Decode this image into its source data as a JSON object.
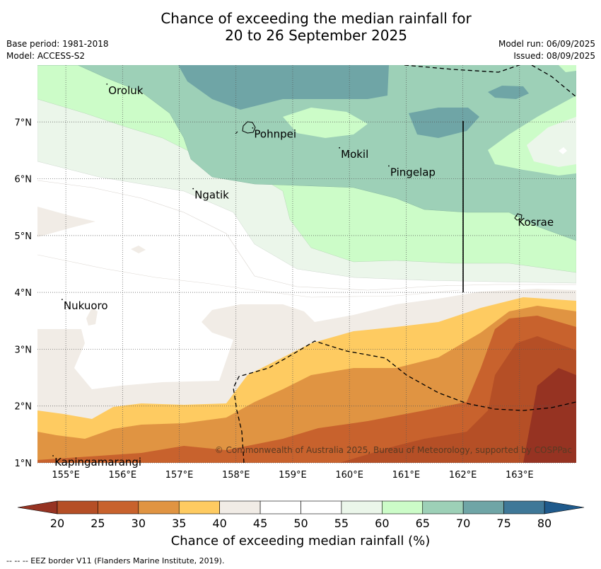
{
  "title_line1": "Chance of exceeding the median rainfall for",
  "title_line2": "20 to 26 September 2025",
  "meta_left": [
    "Base period: 1981-2018",
    "Model: ACCESS-S2"
  ],
  "meta_right": [
    "Model run: 06/09/2025",
    "Issued: 08/09/2025"
  ],
  "map": {
    "lon_range": [
      154.5,
      164.0
    ],
    "lat_range": [
      1.0,
      8.0
    ],
    "lon_ticks": [
      {
        "value": 155,
        "label": "155°E"
      },
      {
        "value": 156,
        "label": "156°E"
      },
      {
        "value": 157,
        "label": "157°E"
      },
      {
        "value": 158,
        "label": "158°E"
      },
      {
        "value": 159,
        "label": "159°E"
      },
      {
        "value": 160,
        "label": "160°E"
      },
      {
        "value": 161,
        "label": "161°E"
      },
      {
        "value": 162,
        "label": "162°E"
      },
      {
        "value": 163,
        "label": "163°E"
      }
    ],
    "lat_ticks": [
      {
        "value": 1,
        "label": "1°N"
      },
      {
        "value": 2,
        "label": "2°N"
      },
      {
        "value": 3,
        "label": "3°N"
      },
      {
        "value": 4,
        "label": "4°N"
      },
      {
        "value": 5,
        "label": "5°N"
      },
      {
        "value": 6,
        "label": "6°N"
      },
      {
        "value": 7,
        "label": "7°N"
      }
    ],
    "places": [
      {
        "name": "Oroluk",
        "lon": 155.75,
        "lat": 7.64
      },
      {
        "name": "Pohnpei",
        "lon": 158.32,
        "lat": 6.87
      },
      {
        "name": "Mokil",
        "lon": 159.85,
        "lat": 6.52
      },
      {
        "name": "Pingelap",
        "lon": 160.72,
        "lat": 6.2
      },
      {
        "name": "Ngatik",
        "lon": 157.27,
        "lat": 5.8
      },
      {
        "name": "Kosrae",
        "lon": 162.97,
        "lat": 5.32
      },
      {
        "name": "Nukuoro",
        "lon": 154.96,
        "lat": 3.85
      },
      {
        "name": "Kapingamarangi",
        "lon": 154.8,
        "lat": 1.1
      }
    ],
    "copyright": "© Commonwealth of Australia 2025, Bureau of Meteorology, supported by COSPPac"
  },
  "colorbar": {
    "levels": [
      20,
      25,
      30,
      35,
      40,
      45,
      50,
      55,
      60,
      65,
      70,
      75,
      80
    ],
    "colors": [
      "#b54f26",
      "#c8622d",
      "#e09442",
      "#fecb61",
      "#f1ece6",
      "#ffffff",
      "#ffffff",
      "#ebf6ea",
      "#ccfcc8",
      "#9dd0b7",
      "#6fa5a6",
      "#3f7898"
    ],
    "under_color": "#963322",
    "over_color": "#1f5a8c",
    "labels": [
      "20",
      "25",
      "30",
      "35",
      "40",
      "45",
      "50",
      "55",
      "60",
      "65",
      "70",
      "75",
      "80"
    ],
    "label": "Chance of exceeding median rainfall (%)"
  },
  "footnote": "--  --  -- EEZ border V11 (Flanders Marine Institute, 2019)."
}
